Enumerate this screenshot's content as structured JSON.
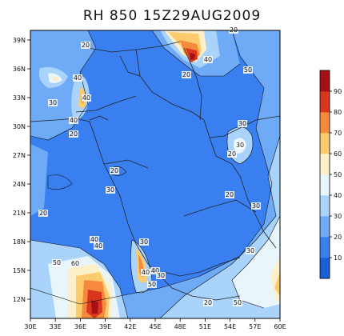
{
  "title": "RH 850 15Z29AUG2009",
  "map": {
    "lon_range": [
      30,
      60
    ],
    "lat_range": [
      10,
      40
    ],
    "lon_ticks": [
      "30E",
      "33E",
      "36E",
      "39E",
      "42E",
      "45E",
      "48E",
      "51E",
      "54E",
      "57E",
      "60E"
    ],
    "lat_ticks": [
      "12N",
      "15N",
      "18N",
      "21N",
      "24N",
      "27N",
      "30N",
      "33N",
      "36N",
      "39N"
    ],
    "contour_labels": [
      "20",
      "20",
      "40",
      "40",
      "30",
      "20",
      "40",
      "40",
      "30",
      "50",
      "20",
      "20",
      "30",
      "30",
      "20",
      "20",
      "20",
      "40",
      "30",
      "40",
      "30",
      "40",
      "50",
      "60",
      "40",
      "50",
      "20",
      "30",
      "50",
      "30"
    ]
  },
  "colorbar": {
    "levels": [
      "10",
      "20",
      "30",
      "40",
      "50",
      "60",
      "70",
      "80",
      "90"
    ],
    "colors": [
      "#1a5ed8",
      "#3a7ff0",
      "#6eaaf6",
      "#a9d3fb",
      "#e8f6fb",
      "#fdf0c8",
      "#fccb6e",
      "#f58a3c",
      "#d8371e",
      "#a50f15"
    ]
  }
}
